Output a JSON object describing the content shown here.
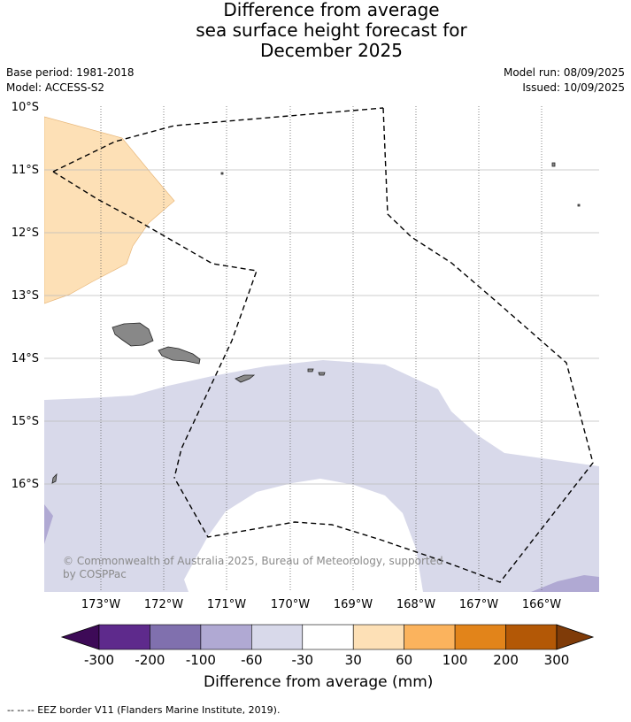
{
  "title": {
    "line1": "Difference from average",
    "line2": "sea surface height forecast for",
    "line3": "December 2025"
  },
  "meta": {
    "base_period": "Base period: 1981-2018",
    "model": "Model: ACCESS-S2",
    "model_run": "Model run: 08/09/2025",
    "issued": "Issued: 10/09/2025"
  },
  "map": {
    "lat_labels": [
      "10°S",
      "11°S",
      "12°S",
      "13°S",
      "14°S",
      "15°S",
      "16°S"
    ],
    "lon_labels": [
      "173°W",
      "172°W",
      "171°W",
      "170°W",
      "169°W",
      "168°W",
      "167°W",
      "166°W"
    ],
    "copyright": "© Commonwealth of Australia 2025, Bureau of Meteorology, supported",
    "copyright_line2": "by COSPPac",
    "colors": {
      "positive_30_60": "#fde0b6",
      "negative_30_60": "#d8d9ea",
      "negative_60_100": "#b0a9d3",
      "land": "#888888"
    }
  },
  "colorbar": {
    "title": "Difference from average (mm)",
    "ticks": [
      "-300",
      "-200",
      "-100",
      "-60",
      "-30",
      "30",
      "60",
      "100",
      "200",
      "300"
    ],
    "colors": [
      "#3d0a57",
      "#5e2a8c",
      "#8070ae",
      "#b0a9d3",
      "#d8d9ea",
      "#ffffff",
      "#fde0b6",
      "#fbb35d",
      "#e2841a",
      "#b35806",
      "#7f3b08"
    ]
  },
  "caption": "-- -- -- EEZ border V11 (Flanders Marine Institute, 2019)."
}
